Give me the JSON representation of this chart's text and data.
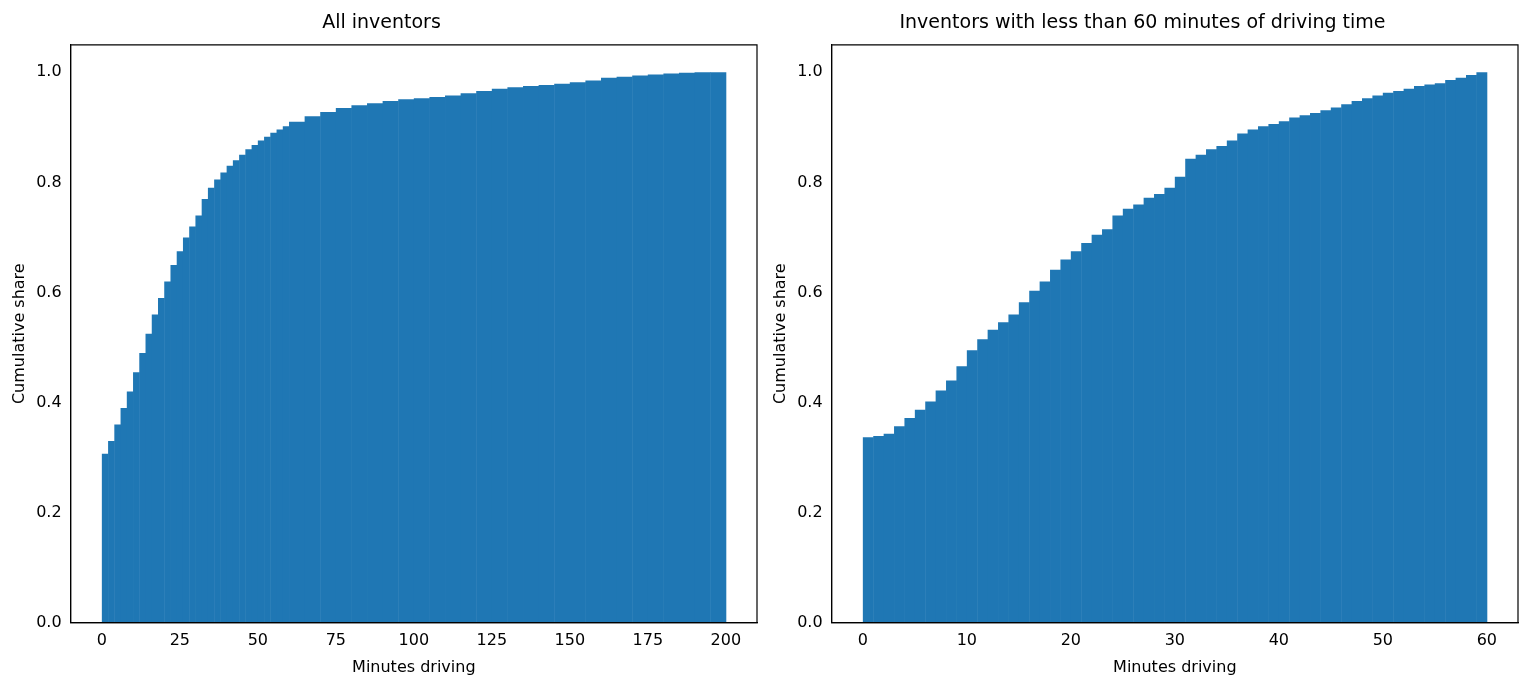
{
  "chart_data": [
    {
      "type": "histogram",
      "title": "All inventors",
      "xlabel": "Minutes driving",
      "ylabel": "Cumulative share",
      "color": "#1f77b4",
      "bins": [
        0,
        2,
        4,
        6,
        8,
        10,
        12,
        14,
        16,
        18,
        20,
        22,
        24,
        26,
        28,
        30,
        32,
        34,
        36,
        38,
        40,
        42,
        44,
        46,
        48,
        50,
        52,
        54,
        56,
        58,
        60,
        65,
        70,
        75,
        80,
        85,
        90,
        95,
        100,
        105,
        110,
        115,
        120,
        125,
        130,
        135,
        140,
        145,
        150,
        155,
        160,
        165,
        170,
        175,
        180,
        185,
        190,
        195,
        200
      ],
      "values": [
        0.307,
        0.33,
        0.36,
        0.39,
        0.42,
        0.455,
        0.49,
        0.525,
        0.56,
        0.59,
        0.62,
        0.65,
        0.675,
        0.7,
        0.72,
        0.74,
        0.77,
        0.79,
        0.805,
        0.818,
        0.83,
        0.84,
        0.85,
        0.86,
        0.868,
        0.876,
        0.883,
        0.89,
        0.896,
        0.902,
        0.91,
        0.92,
        0.928,
        0.935,
        0.94,
        0.944,
        0.948,
        0.951,
        0.953,
        0.955,
        0.958,
        0.962,
        0.966,
        0.97,
        0.973,
        0.975,
        0.977,
        0.979,
        0.982,
        0.985,
        0.99,
        0.992,
        0.994,
        0.996,
        0.998,
        0.999,
        1.0,
        1.0
      ],
      "xlim": [
        -10,
        210
      ],
      "xticks": [
        0,
        25,
        50,
        75,
        100,
        125,
        150,
        175,
        200
      ],
      "ylim": [
        0,
        1.05
      ],
      "yticks": [
        {
          "value": 0,
          "label": "0.0"
        },
        {
          "value": 0.2,
          "label": "0.2"
        },
        {
          "value": 0.4,
          "label": "0.4"
        },
        {
          "value": 0.6,
          "label": "0.6"
        },
        {
          "value": 0.8,
          "label": "0.8"
        },
        {
          "value": 1,
          "label": "1.0"
        }
      ]
    },
    {
      "type": "histogram",
      "title": "Inventors with less than 60 minutes of driving time",
      "xlabel": "Minutes driving",
      "ylabel": "Cumulative share",
      "color": "#1f77b4",
      "bins": [
        0,
        1,
        2,
        3,
        4,
        5,
        6,
        7,
        8,
        9,
        10,
        11,
        12,
        13,
        14,
        15,
        16,
        17,
        18,
        19,
        20,
        21,
        22,
        23,
        24,
        25,
        26,
        27,
        28,
        29,
        30,
        31,
        32,
        33,
        34,
        35,
        36,
        37,
        38,
        39,
        40,
        41,
        42,
        43,
        44,
        45,
        46,
        47,
        48,
        49,
        50,
        51,
        52,
        53,
        54,
        55,
        56,
        57,
        58,
        59,
        60
      ],
      "values": [
        0.337,
        0.339,
        0.343,
        0.357,
        0.372,
        0.387,
        0.402,
        0.422,
        0.44,
        0.466,
        0.495,
        0.515,
        0.532,
        0.546,
        0.56,
        0.582,
        0.603,
        0.62,
        0.641,
        0.66,
        0.675,
        0.69,
        0.705,
        0.715,
        0.74,
        0.752,
        0.76,
        0.772,
        0.779,
        0.79,
        0.81,
        0.843,
        0.85,
        0.86,
        0.866,
        0.876,
        0.889,
        0.896,
        0.902,
        0.906,
        0.911,
        0.918,
        0.922,
        0.926,
        0.931,
        0.936,
        0.942,
        0.948,
        0.953,
        0.958,
        0.963,
        0.966,
        0.97,
        0.975,
        0.978,
        0.98,
        0.986,
        0.99,
        0.995,
        1.0
      ],
      "xlim": [
        -3,
        63
      ],
      "xticks": [
        0,
        10,
        20,
        30,
        40,
        50,
        60
      ],
      "ylim": [
        0,
        1.05
      ],
      "yticks": [
        {
          "value": 0,
          "label": "0.0"
        },
        {
          "value": 0.2,
          "label": "0.2"
        },
        {
          "value": 0.4,
          "label": "0.4"
        },
        {
          "value": 0.6,
          "label": "0.6"
        },
        {
          "value": 0.8,
          "label": "0.8"
        },
        {
          "value": 1,
          "label": "1.0"
        }
      ]
    }
  ]
}
